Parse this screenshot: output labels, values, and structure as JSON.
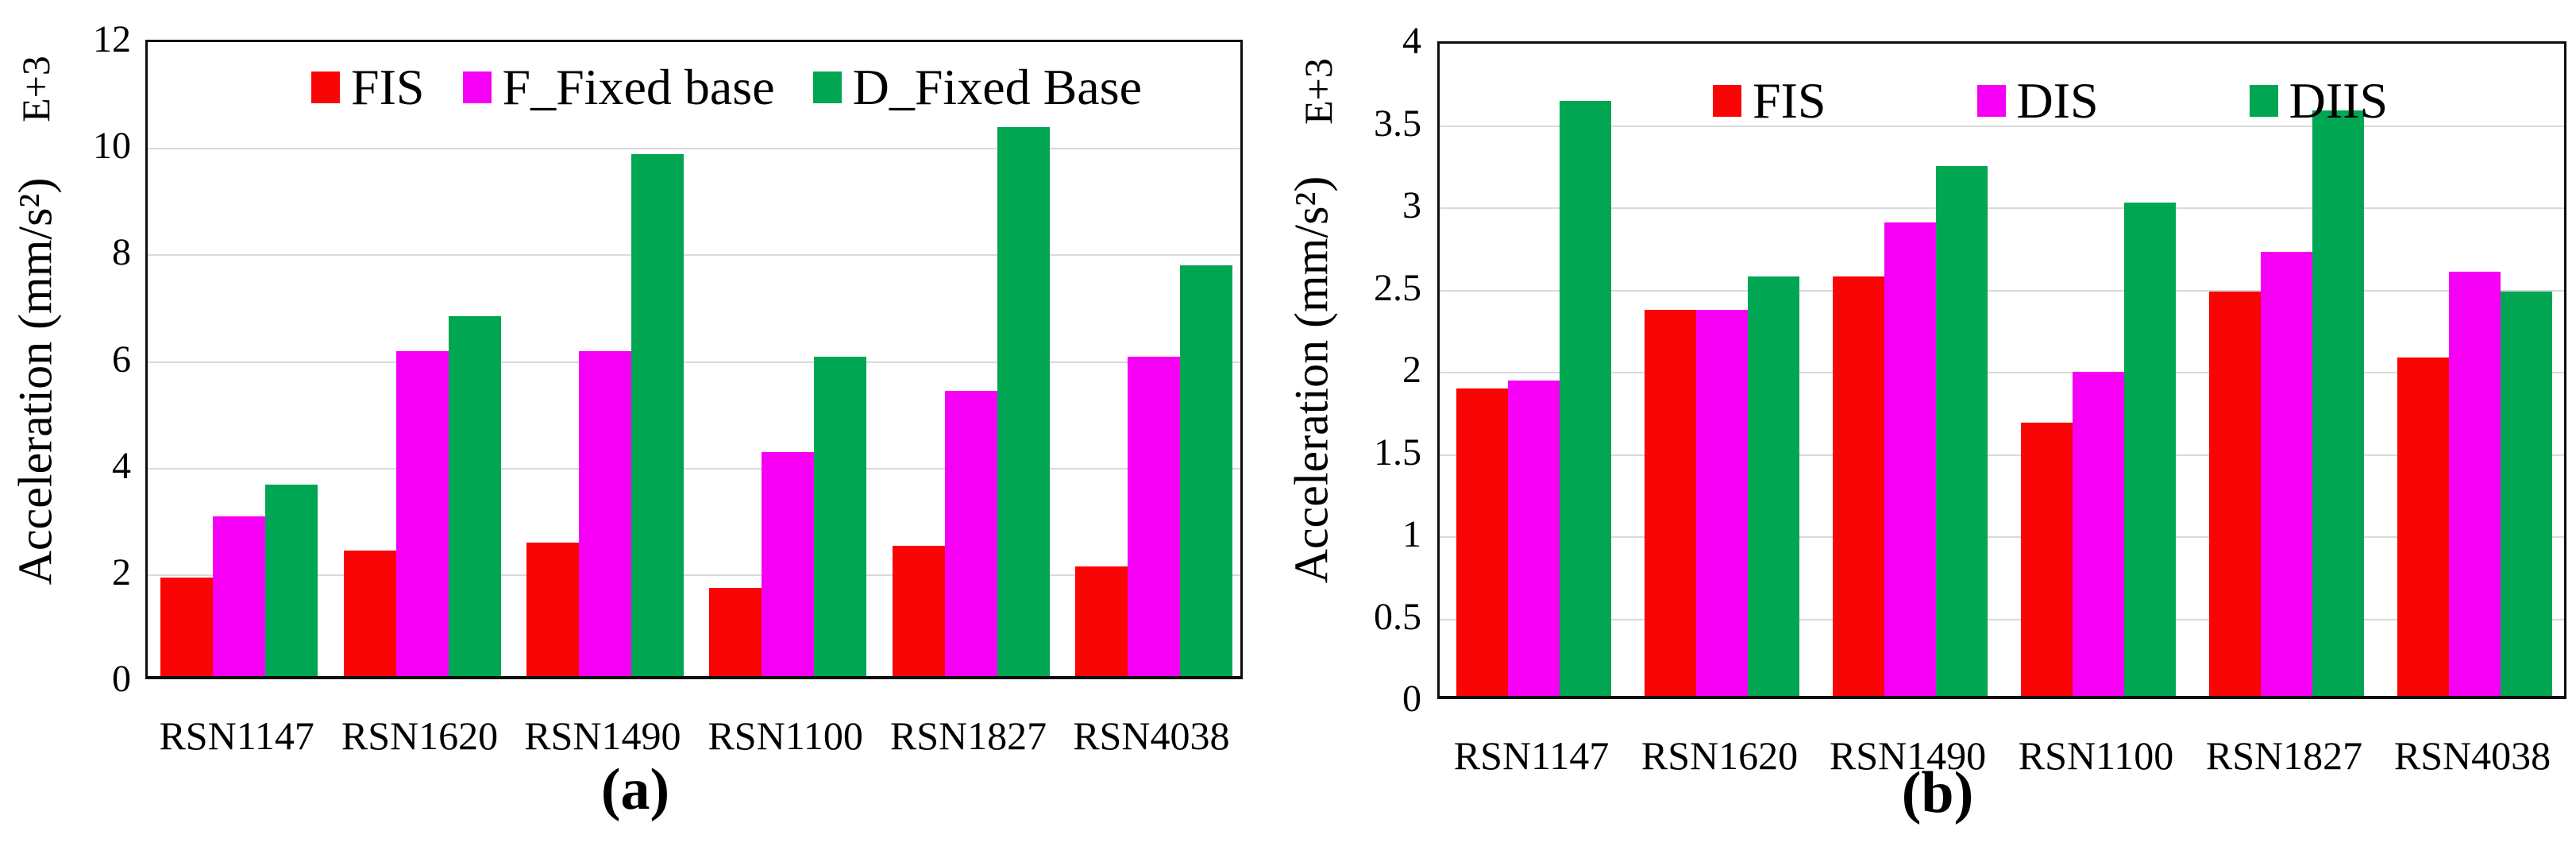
{
  "figure": {
    "background": "#ffffff",
    "caption_a": "(a)",
    "caption_b": "(b)"
  },
  "chart_data": [
    {
      "type": "bar",
      "panel": "a",
      "caption": "(a)",
      "title": "",
      "xlabel": "",
      "ylabel": "Acceleration (mm/s²)",
      "y_axis": {
        "title": "Acceleration (mm/s²)",
        "multiplier": "E+3",
        "min": 0,
        "max": 12,
        "step": 2,
        "tick_labels": [
          "0",
          "2",
          "4",
          "6",
          "8",
          "10",
          "12"
        ]
      },
      "grid": true,
      "legend_position": "top-inside",
      "categories": [
        "RSN1147",
        "RSN1620",
        "RSN1490",
        "RSN1100",
        "RSN1827",
        "RSN4038"
      ],
      "legend": [
        {
          "label": "FIS",
          "color": "#fa0505"
        },
        {
          "label": "F_Fixed base",
          "color": "#f500f5"
        },
        {
          "label": "D_Fixed Base",
          "color": "#00a651"
        }
      ],
      "series": [
        {
          "name": "FIS",
          "color": "#fa0505",
          "values": [
            1.85,
            2.35,
            2.5,
            1.65,
            2.45,
            2.05
          ]
        },
        {
          "name": "F_Fixed base",
          "color": "#f500f5",
          "values": [
            3.0,
            6.1,
            6.1,
            4.2,
            5.35,
            6.0
          ]
        },
        {
          "name": "D_Fixed Base",
          "color": "#00a651",
          "values": [
            3.6,
            6.75,
            9.8,
            6.0,
            10.3,
            7.7
          ]
        }
      ]
    },
    {
      "type": "bar",
      "panel": "b",
      "caption": "(b)",
      "title": "",
      "xlabel": "",
      "ylabel": "Acceleration (mm/s²)",
      "y_axis": {
        "title": "Acceleration (mm/s²)",
        "multiplier": "E+3",
        "min": 0,
        "max": 4,
        "step": 0.5,
        "tick_labels": [
          "0",
          "0.5",
          "1",
          "1.5",
          "2",
          "2.5",
          "3",
          "3.5",
          "4"
        ]
      },
      "grid": true,
      "legend_position": "top-inside",
      "categories": [
        "RSN1147",
        "RSN1620",
        "RSN1490",
        "RSN1100",
        "RSN1827",
        "RSN4038"
      ],
      "legend": [
        {
          "label": "FIS",
          "color": "#fa0505"
        },
        {
          "label": "DIS",
          "color": "#f500f5"
        },
        {
          "label": "DIIS",
          "color": "#00a651"
        }
      ],
      "series": [
        {
          "name": "FIS",
          "color": "#fa0505",
          "values": [
            1.87,
            2.35,
            2.55,
            1.66,
            2.46,
            2.06
          ]
        },
        {
          "name": "DIS",
          "color": "#f500f5",
          "values": [
            1.92,
            2.35,
            2.88,
            1.97,
            2.7,
            2.58
          ]
        },
        {
          "name": "DIIS",
          "color": "#00a651",
          "values": [
            3.62,
            2.55,
            3.22,
            3.0,
            3.56,
            2.46
          ]
        }
      ]
    }
  ]
}
